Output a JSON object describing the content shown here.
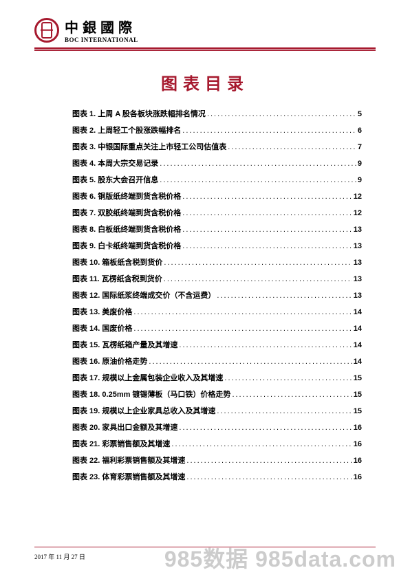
{
  "brand": {
    "cn": "中銀國際",
    "en": "BOC INTERNATIONAL"
  },
  "toc": {
    "title": "图表目录",
    "items": [
      {
        "label": "图表 1. 上周 A 股各板块涨跌幅排名情况",
        "page": "5"
      },
      {
        "label": "图表 2. 上周轻工个股涨跌幅排名",
        "page": "6"
      },
      {
        "label": "图表 3. 中银国际重点关注上市轻工公司估值表",
        "page": "7"
      },
      {
        "label": "图表 4. 本周大宗交易记录",
        "page": "9"
      },
      {
        "label": "图表 5. 股东大会召开信息",
        "page": "9"
      },
      {
        "label": "图表 6. 铜版纸终端到货含税价格",
        "page": "12"
      },
      {
        "label": "图表 7. 双胶纸终端到货含税价格",
        "page": "12"
      },
      {
        "label": "图表 8. 白板纸终端到货含税价格",
        "page": "13"
      },
      {
        "label": "图表 9. 白卡纸终端到货含税价格",
        "page": "13"
      },
      {
        "label": "图表 10. 箱板纸含税到货价",
        "page": "13"
      },
      {
        "label": "图表 11. 瓦楞纸含税到货价",
        "page": "13"
      },
      {
        "label": "图表 12. 国际纸浆终端成交价（不含运费）",
        "page": "13"
      },
      {
        "label": "图表 13. 美废价格",
        "page": "14"
      },
      {
        "label": "图表 14. 国废价格",
        "page": "14"
      },
      {
        "label": "图表 15. 瓦楞纸箱产量及其增速",
        "page": "14"
      },
      {
        "label": "图表 16. 原油价格走势",
        "page": "14"
      },
      {
        "label": "图表 17. 规模以上金属包装企业收入及其增速",
        "page": "15"
      },
      {
        "label": "图表 18. 0.25mm 镀锡薄板（马口铁）价格走势",
        "page": "15"
      },
      {
        "label": "图表 19. 规模以上企业家具总收入及其增速",
        "page": "15"
      },
      {
        "label": "图表 20. 家具出口金额及其增速",
        "page": "16"
      },
      {
        "label": "图表 21. 彩票销售额及其增速",
        "page": "16"
      },
      {
        "label": "图表 22. 福利彩票销售额及其增速",
        "page": "16"
      },
      {
        "label": "图表 23. 体育彩票销售额及其增速",
        "page": "16"
      }
    ]
  },
  "footer": {
    "date": "2017 年 11 月 27 日"
  },
  "watermark": "985数据 985data.com",
  "colors": {
    "accent": "#a6192e",
    "text": "#000000",
    "watermark": "#cccccc",
    "background": "#ffffff"
  }
}
